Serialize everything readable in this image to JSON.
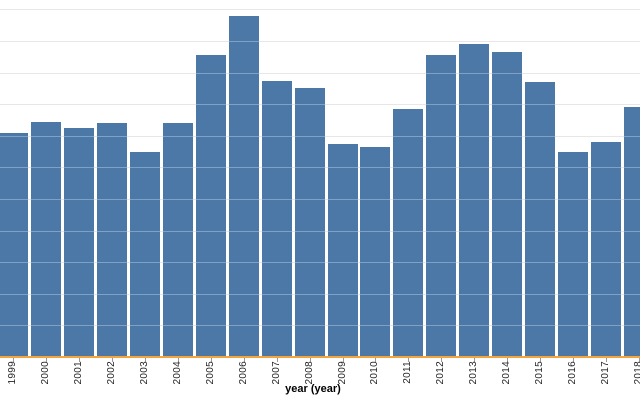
{
  "chart": {
    "background": "#ffffff",
    "bar_color": "#4c78a8",
    "axis_line_color": "#f5a33c",
    "grid_color": "#dddddd",
    "grid_overlay_color": "rgba(255,255,255,0.30)",
    "tick_color": "#999999",
    "label_color": "#262626",
    "title_color": "#000000"
  },
  "chart_data": {
    "type": "bar",
    "title": "",
    "xlabel": "year (year)",
    "ylabel": "",
    "categories": [
      "1999",
      "2000",
      "2001",
      "2002",
      "2003",
      "2004",
      "2005",
      "2006",
      "2007",
      "2008",
      "2009",
      "2010",
      "2011",
      "2012",
      "2013",
      "2014",
      "2015",
      "2016",
      "2017",
      "2018"
    ],
    "values": [
      7.1,
      7.45,
      7.25,
      7.4,
      6.5,
      7.4,
      9.55,
      10.8,
      8.75,
      8.5,
      6.75,
      6.65,
      7.85,
      9.55,
      9.9,
      9.65,
      8.7,
      6.5,
      6.8,
      7.9
    ],
    "ylim": [
      0,
      11.35
    ],
    "grid": true,
    "gridline_interval": 1,
    "legend": "none",
    "notes": "Y-axis line and its value labels are cropped off the left edge of the screenshot, so bar values are estimated in gridline units (one horizontal gridline spacing = 1 unit). The first (1999) and last (2018) bars are clipped by the image edges. X tick labels are rotated 270 degrees (read bottom-to-top). Orange horizontal line is the x-axis baseline."
  }
}
